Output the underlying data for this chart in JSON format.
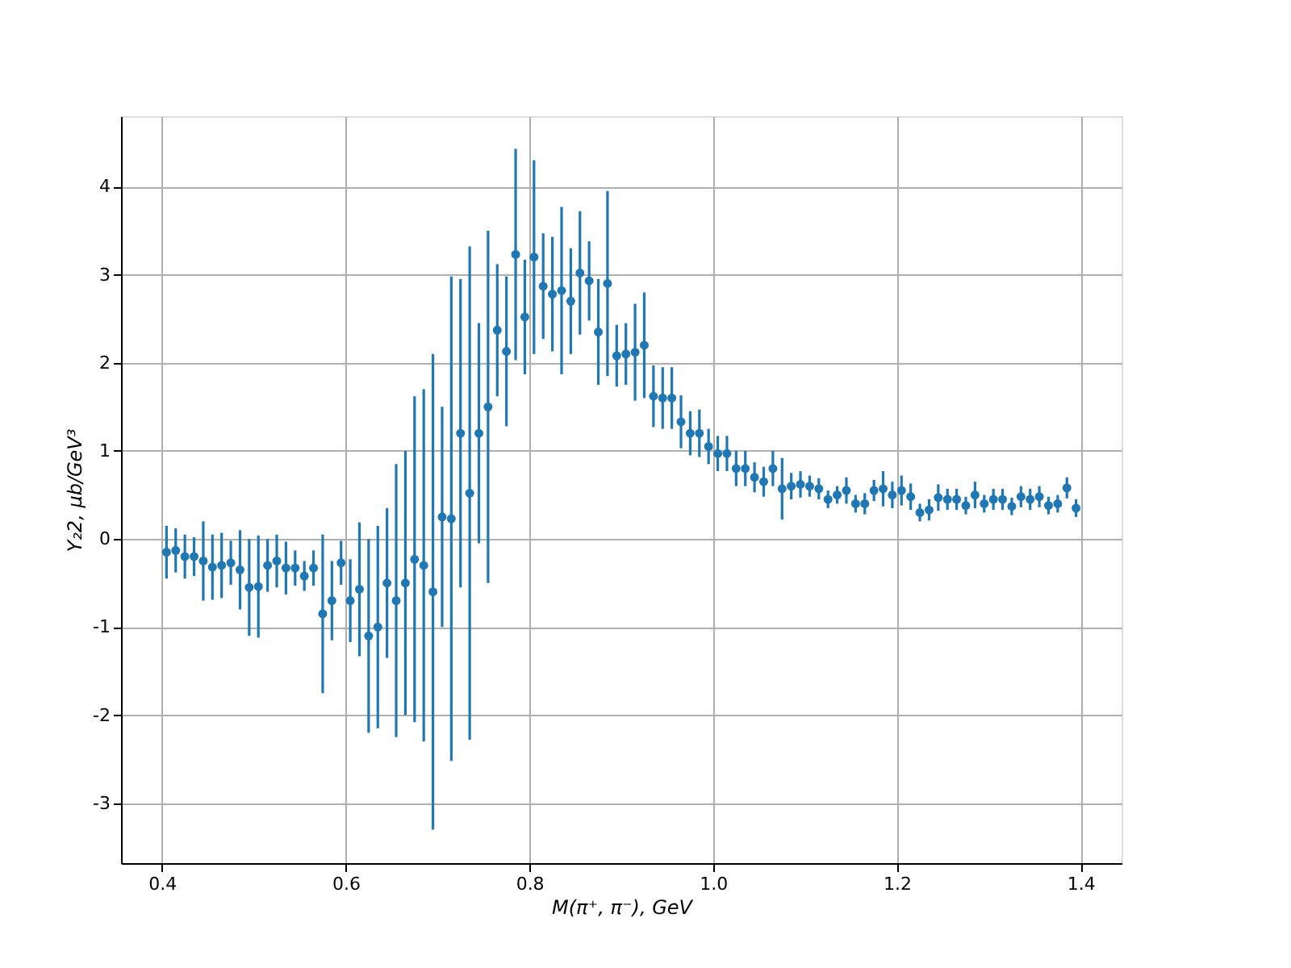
{
  "chart_data": {
    "type": "scatter",
    "xlabel": "M(π⁺, π⁻), GeV",
    "ylabel": "Y₂2, μb/GeV³",
    "x": [
      0.405,
      0.415,
      0.425,
      0.435,
      0.445,
      0.455,
      0.465,
      0.475,
      0.485,
      0.495,
      0.505,
      0.515,
      0.525,
      0.535,
      0.545,
      0.555,
      0.565,
      0.575,
      0.585,
      0.595,
      0.605,
      0.615,
      0.625,
      0.635,
      0.645,
      0.655,
      0.665,
      0.675,
      0.685,
      0.695,
      0.705,
      0.715,
      0.725,
      0.735,
      0.745,
      0.755,
      0.765,
      0.775,
      0.785,
      0.795,
      0.805,
      0.815,
      0.825,
      0.835,
      0.845,
      0.855,
      0.865,
      0.875,
      0.885,
      0.895,
      0.905,
      0.915,
      0.925,
      0.935,
      0.945,
      0.955,
      0.965,
      0.975,
      0.985,
      0.995,
      1.005,
      1.015,
      1.025,
      1.035,
      1.045,
      1.055,
      1.065,
      1.075,
      1.085,
      1.095,
      1.105,
      1.115,
      1.125,
      1.135,
      1.145,
      1.155,
      1.165,
      1.175,
      1.185,
      1.195,
      1.205,
      1.215,
      1.225,
      1.235,
      1.245,
      1.255,
      1.265,
      1.275,
      1.285,
      1.295,
      1.305,
      1.315,
      1.325,
      1.335,
      1.345,
      1.355,
      1.365,
      1.375,
      1.385,
      1.395
    ],
    "series": [
      {
        "color": "#1f77b4",
        "values": [
          -0.15,
          -0.13,
          -0.2,
          -0.2,
          -0.25,
          -0.32,
          -0.3,
          -0.27,
          -0.35,
          -0.55,
          -0.54,
          -0.3,
          -0.25,
          -0.33,
          -0.33,
          -0.42,
          -0.33,
          -0.85,
          -0.7,
          -0.27,
          -0.7,
          -0.57,
          -1.1,
          -1.0,
          -0.5,
          -0.7,
          -0.5,
          -0.23,
          -0.3,
          -0.6,
          0.25,
          0.23,
          1.2,
          0.52,
          1.2,
          1.5,
          2.37,
          2.13,
          3.23,
          2.52,
          3.2,
          2.87,
          2.78,
          2.82,
          2.7,
          3.02,
          2.93,
          2.35,
          2.9,
          2.08,
          2.1,
          2.12,
          2.2,
          1.62,
          1.6,
          1.6,
          1.33,
          1.2,
          1.2,
          1.05,
          0.97,
          0.97,
          0.8,
          0.8,
          0.7,
          0.65,
          0.8,
          0.57,
          0.6,
          0.62,
          0.6,
          0.57,
          0.45,
          0.5,
          0.55,
          0.4,
          0.4,
          0.55,
          0.57,
          0.5,
          0.55,
          0.48,
          0.3,
          0.33,
          0.47,
          0.45,
          0.45,
          0.38,
          0.5,
          0.4,
          0.45,
          0.45,
          0.37,
          0.48,
          0.45,
          0.48,
          0.38,
          0.4,
          0.58,
          0.35
        ],
        "errors": [
          0.3,
          0.25,
          0.25,
          0.22,
          0.45,
          0.37,
          0.37,
          0.25,
          0.45,
          0.55,
          0.58,
          0.3,
          0.3,
          0.3,
          0.2,
          0.17,
          0.2,
          0.9,
          0.45,
          0.25,
          0.47,
          0.76,
          1.1,
          1.15,
          0.85,
          1.55,
          1.5,
          1.85,
          2.0,
          2.7,
          1.25,
          2.75,
          1.75,
          2.8,
          1.25,
          2.0,
          0.75,
          0.85,
          1.2,
          0.65,
          1.1,
          0.6,
          0.65,
          0.95,
          0.6,
          0.7,
          0.45,
          0.6,
          1.05,
          0.35,
          0.35,
          0.55,
          0.6,
          0.35,
          0.35,
          0.35,
          0.3,
          0.25,
          0.27,
          0.2,
          0.2,
          0.2,
          0.2,
          0.2,
          0.17,
          0.17,
          0.2,
          0.35,
          0.15,
          0.15,
          0.12,
          0.12,
          0.1,
          0.1,
          0.15,
          0.1,
          0.12,
          0.12,
          0.2,
          0.15,
          0.17,
          0.15,
          0.1,
          0.12,
          0.15,
          0.12,
          0.12,
          0.1,
          0.15,
          0.1,
          0.12,
          0.12,
          0.1,
          0.12,
          0.12,
          0.12,
          0.1,
          0.1,
          0.12,
          0.1
        ]
      }
    ],
    "marker": "circle",
    "grid": true,
    "xlim": [
      0.3555,
      1.4445
    ],
    "xticks": [
      0.4,
      0.6,
      0.8,
      {
        "value": 1.0,
        "label": "1.0"
      },
      1.2,
      1.4
    ],
    "ylim": [
      -3.68,
      4.8
    ],
    "yticks": [
      -3,
      -2,
      -1,
      0,
      1,
      2,
      3,
      4
    ]
  }
}
